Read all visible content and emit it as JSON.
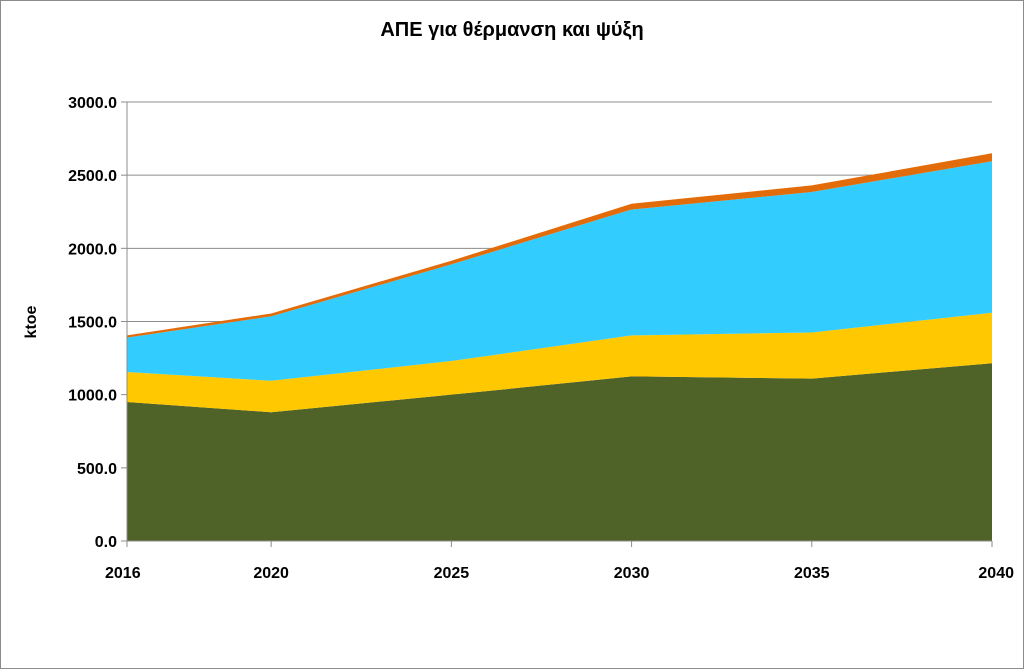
{
  "chart_data": {
    "type": "area",
    "stacked": true,
    "title": "ΑΠΕ για θέρμανση και ψύξη",
    "xlabel": "",
    "ylabel": "ktoe",
    "x": [
      2016,
      2020,
      2025,
      2030,
      2035,
      2040
    ],
    "x_tick_labels": [
      "2016",
      "2020",
      "2025",
      "2030",
      "2035",
      "2040"
    ],
    "ylim": [
      0,
      3000
    ],
    "y_ticks": [
      0,
      500,
      1000,
      1500,
      2000,
      2500,
      3000
    ],
    "y_tick_labels": [
      "0.0",
      "500.0",
      "1000.0",
      "1500.0",
      "2000.0",
      "2500.0",
      "3000.0"
    ],
    "grid": true,
    "legend": "none",
    "series": [
      {
        "color": "#4f6228",
        "values": [
          950,
          880,
          1000,
          1125,
          1110,
          1215
        ]
      },
      {
        "color": "#ffc800",
        "values": [
          205,
          215,
          230,
          280,
          315,
          345
        ]
      },
      {
        "color": "#33ccff",
        "values": [
          235,
          440,
          660,
          860,
          960,
          1035
        ]
      },
      {
        "color": "#e36c0a",
        "values": [
          15,
          20,
          25,
          40,
          45,
          55
        ]
      }
    ]
  }
}
